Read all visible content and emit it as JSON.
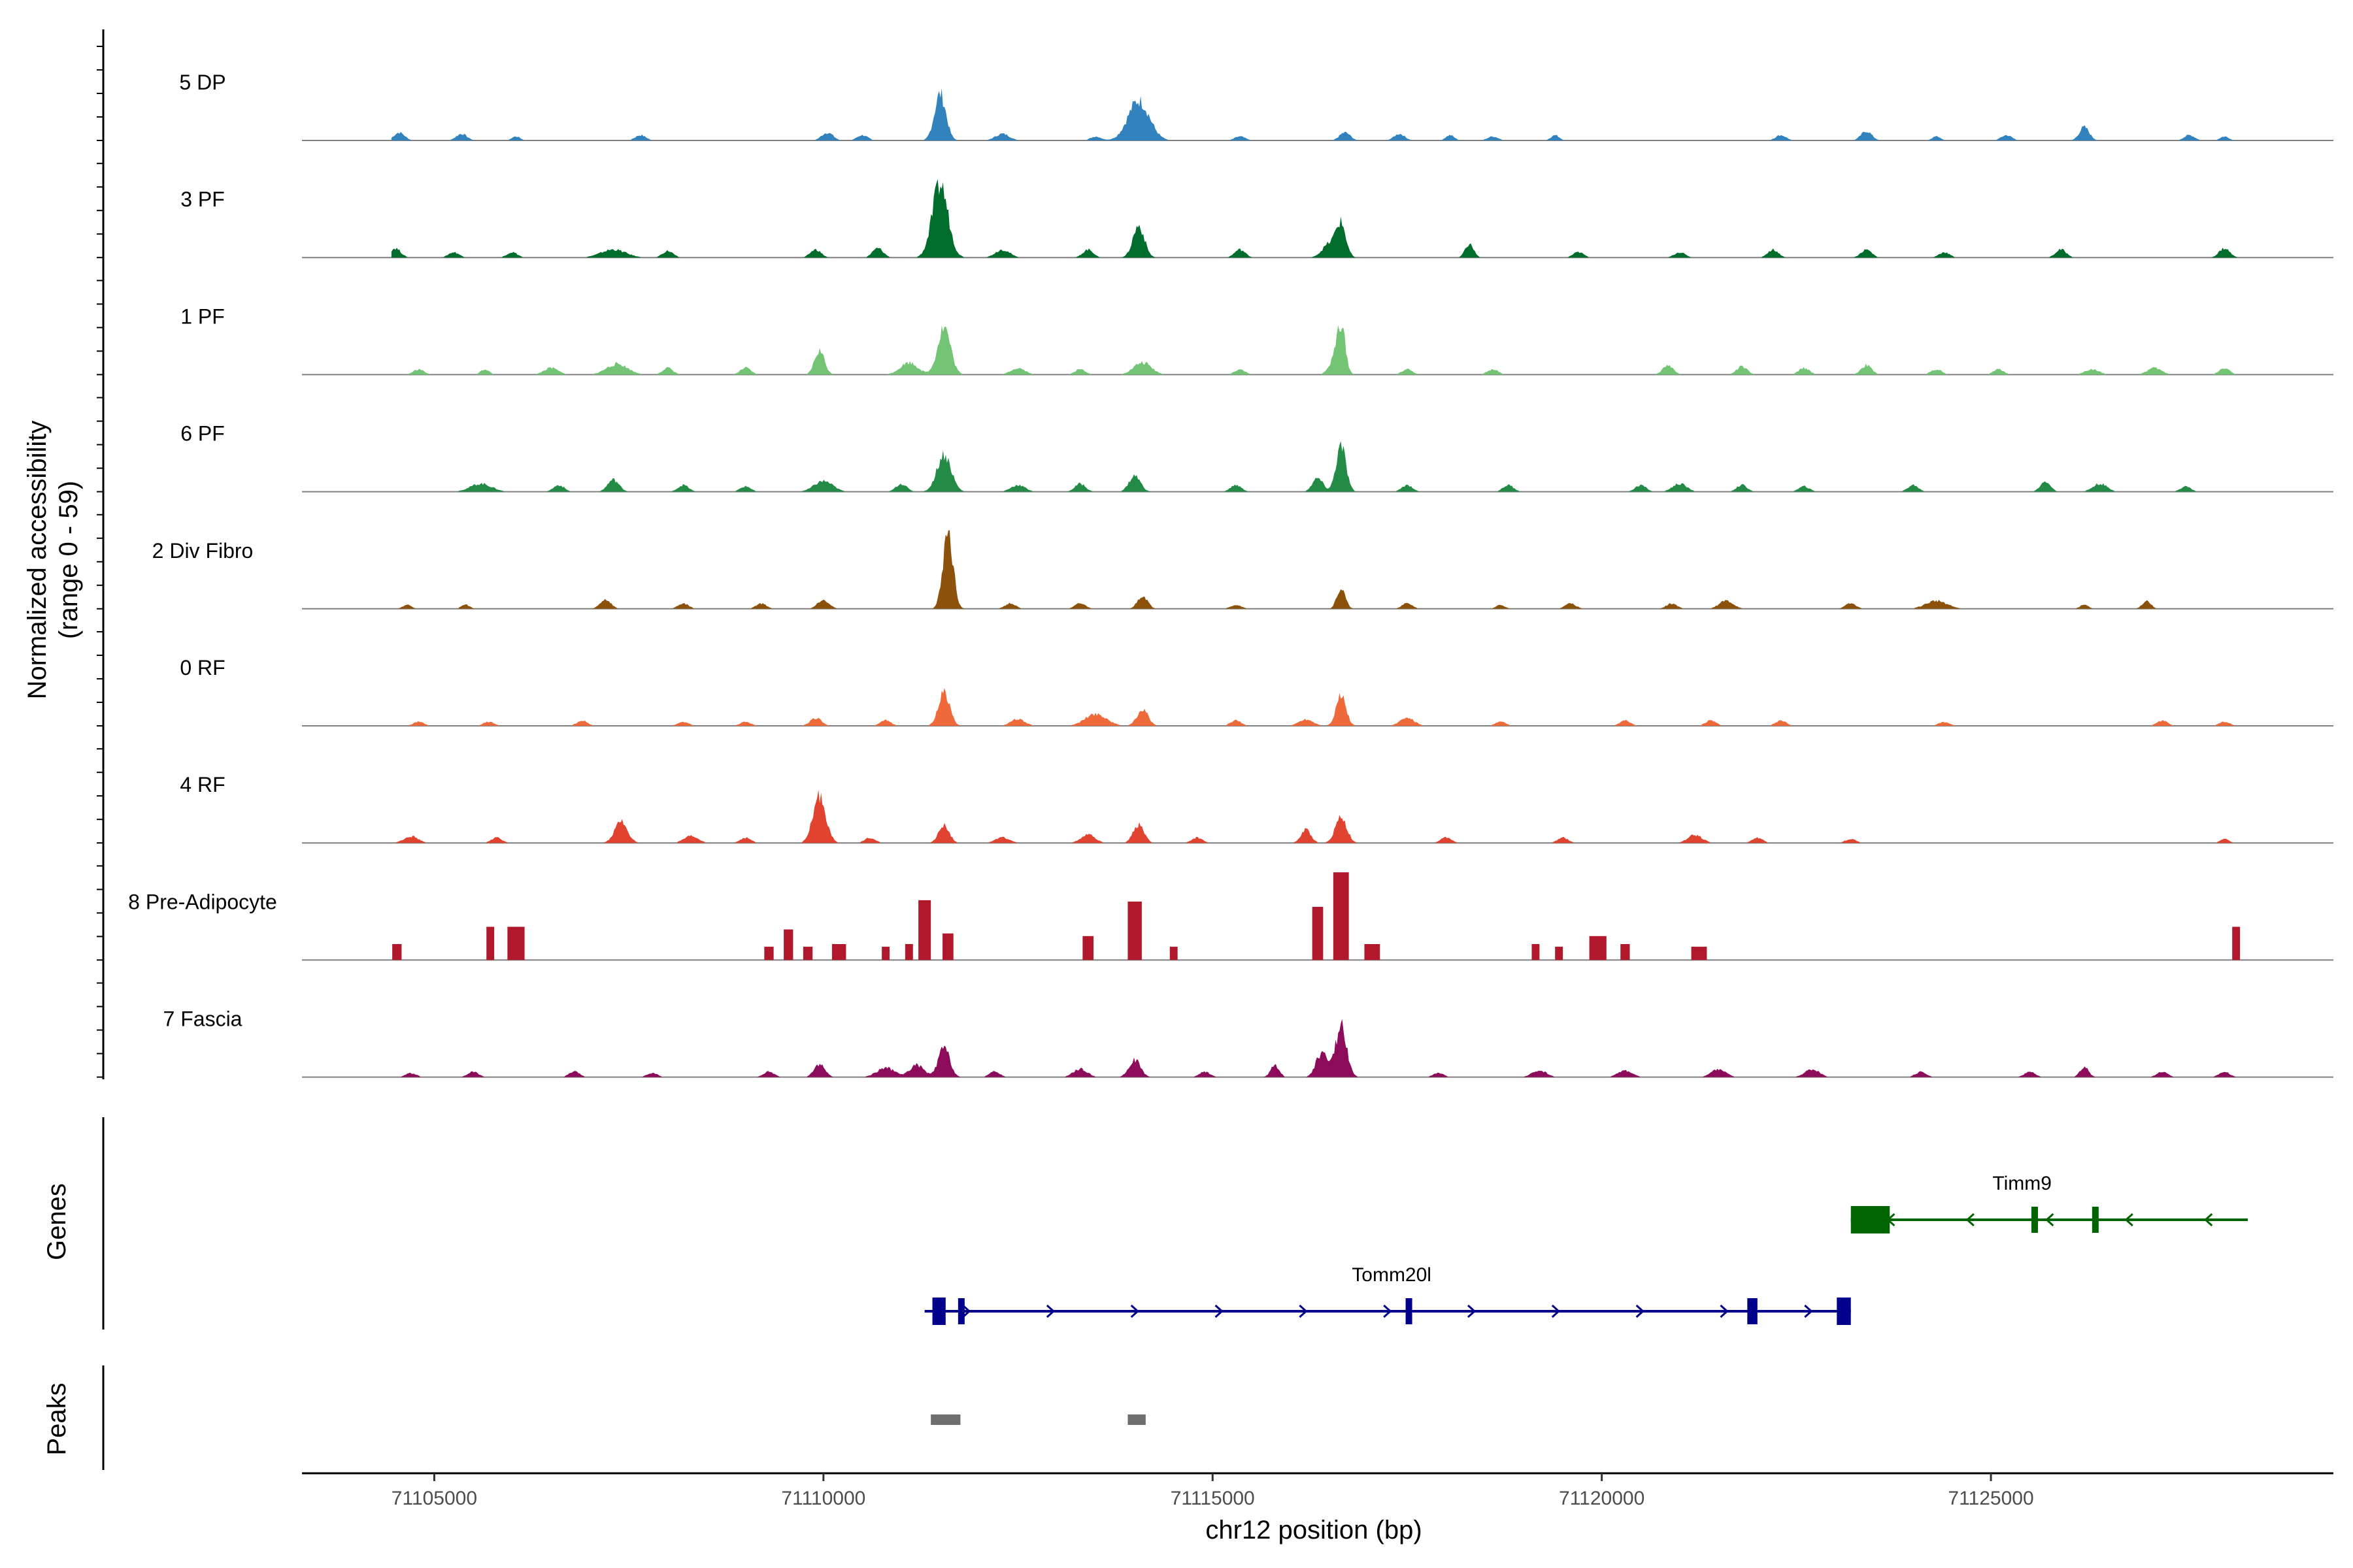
{
  "chart_data": {
    "type": "area",
    "title": "",
    "ylabel_line1": "Normalized accessibility",
    "ylabel_line2": "(range 0 - 59)",
    "yrange": [
      0,
      59
    ],
    "xlabel": "chr12 position (bp)",
    "xlim": [
      71103300,
      71129400
    ],
    "xticks": [
      71105000,
      71110000,
      71115000,
      71120000,
      71125000
    ],
    "xtick_labels": [
      "71105000",
      "71110000",
      "71115000",
      "71120000",
      "71125000"
    ],
    "tracks": [
      {
        "name": "5 DP",
        "color": "#3182bd",
        "style": "smooth",
        "peaks": [
          [
            71104550,
            6,
            150
          ],
          [
            71105350,
            5,
            150
          ],
          [
            71106050,
            3,
            120
          ],
          [
            71107650,
            4,
            150
          ],
          [
            71110050,
            6,
            160
          ],
          [
            71110500,
            4,
            150
          ],
          [
            71111500,
            35,
            160
          ],
          [
            71112300,
            5,
            200
          ],
          [
            71113500,
            3,
            150
          ],
          [
            71114050,
            30,
            300
          ],
          [
            71115350,
            3,
            150
          ],
          [
            71116700,
            6,
            150
          ],
          [
            71117400,
            5,
            150
          ],
          [
            71118050,
            4,
            120
          ],
          [
            71118600,
            3,
            150
          ],
          [
            71119400,
            4,
            120
          ],
          [
            71122300,
            4,
            150
          ],
          [
            71123400,
            7,
            150
          ],
          [
            71124300,
            3,
            120
          ],
          [
            71125200,
            4,
            150
          ],
          [
            71126200,
            10,
            140
          ],
          [
            71127550,
            4,
            150
          ],
          [
            71128000,
            3,
            120
          ]
        ]
      },
      {
        "name": "3 PF",
        "color": "#006d2c",
        "style": "smooth",
        "peaks": [
          [
            71104500,
            7,
            150
          ],
          [
            71105250,
            4,
            150
          ],
          [
            71106000,
            4,
            150
          ],
          [
            71107300,
            6,
            350
          ],
          [
            71108000,
            5,
            150
          ],
          [
            71109900,
            6,
            150
          ],
          [
            71110700,
            7,
            150
          ],
          [
            71111500,
            55,
            220
          ],
          [
            71112300,
            6,
            200
          ],
          [
            71113400,
            6,
            150
          ],
          [
            71114050,
            24,
            160
          ],
          [
            71115350,
            6,
            150
          ],
          [
            71116500,
            10,
            200
          ],
          [
            71116650,
            24,
            140
          ],
          [
            71118300,
            10,
            120
          ],
          [
            71119700,
            4,
            150
          ],
          [
            71121000,
            4,
            150
          ],
          [
            71122200,
            6,
            150
          ],
          [
            71123400,
            6,
            150
          ],
          [
            71124400,
            4,
            150
          ],
          [
            71125900,
            6,
            150
          ],
          [
            71128000,
            7,
            150
          ]
        ]
      },
      {
        "name": "1 PF",
        "color": "#74c476",
        "style": "smooth",
        "peaks": [
          [
            71104800,
            4,
            150
          ],
          [
            71105650,
            4,
            120
          ],
          [
            71106500,
            5,
            200
          ],
          [
            71107350,
            8,
            300
          ],
          [
            71108000,
            5,
            150
          ],
          [
            71109000,
            5,
            150
          ],
          [
            71109950,
            18,
            140
          ],
          [
            71111100,
            9,
            250
          ],
          [
            71111550,
            36,
            180
          ],
          [
            71112500,
            5,
            200
          ],
          [
            71113300,
            4,
            150
          ],
          [
            71114100,
            9,
            250
          ],
          [
            71115350,
            4,
            150
          ],
          [
            71116550,
            8,
            150
          ],
          [
            71116650,
            36,
            120
          ],
          [
            71117500,
            4,
            150
          ],
          [
            71118600,
            4,
            150
          ],
          [
            71120850,
            7,
            150
          ],
          [
            71121800,
            6,
            150
          ],
          [
            71122600,
            5,
            150
          ],
          [
            71123400,
            7,
            150
          ],
          [
            71124300,
            4,
            150
          ],
          [
            71125100,
            4,
            150
          ],
          [
            71126300,
            4,
            200
          ],
          [
            71127100,
            5,
            200
          ],
          [
            71128000,
            5,
            150
          ]
        ]
      },
      {
        "name": "6 PF",
        "color": "#238b45",
        "style": "smooth",
        "peaks": [
          [
            71105600,
            6,
            300
          ],
          [
            71106600,
            5,
            150
          ],
          [
            71107300,
            9,
            160
          ],
          [
            71108200,
            5,
            150
          ],
          [
            71109000,
            4,
            150
          ],
          [
            71110000,
            8,
            260
          ],
          [
            71111000,
            6,
            150
          ],
          [
            71111550,
            28,
            200
          ],
          [
            71112500,
            5,
            200
          ],
          [
            71113300,
            6,
            150
          ],
          [
            71114000,
            12,
            160
          ],
          [
            71115300,
            5,
            150
          ],
          [
            71116350,
            10,
            150
          ],
          [
            71116650,
            34,
            140
          ],
          [
            71117500,
            5,
            150
          ],
          [
            71118800,
            5,
            150
          ],
          [
            71120500,
            5,
            150
          ],
          [
            71121000,
            6,
            200
          ],
          [
            71121800,
            5,
            150
          ],
          [
            71122600,
            4,
            150
          ],
          [
            71124000,
            5,
            150
          ],
          [
            71125700,
            8,
            140
          ],
          [
            71126400,
            6,
            200
          ],
          [
            71127500,
            4,
            150
          ]
        ]
      },
      {
        "name": "2 Div Fibro",
        "color": "#8c510a",
        "style": "smooth",
        "peaks": [
          [
            71104650,
            3,
            120
          ],
          [
            71105400,
            3,
            120
          ],
          [
            71107200,
            7,
            150
          ],
          [
            71108200,
            4,
            150
          ],
          [
            71109200,
            4,
            150
          ],
          [
            71110000,
            7,
            160
          ],
          [
            71111600,
            59,
            140
          ],
          [
            71112400,
            4,
            150
          ],
          [
            71113300,
            4,
            150
          ],
          [
            71114100,
            10,
            140
          ],
          [
            71115300,
            3,
            150
          ],
          [
            71116650,
            15,
            120
          ],
          [
            71117500,
            4,
            150
          ],
          [
            71118700,
            3,
            120
          ],
          [
            71119600,
            4,
            150
          ],
          [
            71120900,
            4,
            150
          ],
          [
            71121600,
            6,
            200
          ],
          [
            71123200,
            4,
            150
          ],
          [
            71124300,
            6,
            300
          ],
          [
            71126200,
            3,
            120
          ],
          [
            71127000,
            6,
            120
          ]
        ]
      },
      {
        "name": "0 RF",
        "color": "#ef6a3a",
        "style": "smooth",
        "peaks": [
          [
            71104800,
            3,
            150
          ],
          [
            71105700,
            3,
            150
          ],
          [
            71106900,
            4,
            150
          ],
          [
            71108200,
            3,
            150
          ],
          [
            71109000,
            3,
            150
          ],
          [
            71109900,
            6,
            160
          ],
          [
            71110800,
            4,
            150
          ],
          [
            71111550,
            25,
            160
          ],
          [
            71112500,
            5,
            200
          ],
          [
            71113500,
            9,
            300
          ],
          [
            71114100,
            12,
            160
          ],
          [
            71115300,
            4,
            150
          ],
          [
            71116200,
            5,
            200
          ],
          [
            71116650,
            23,
            140
          ],
          [
            71117500,
            6,
            200
          ],
          [
            71118700,
            3,
            150
          ],
          [
            71120300,
            4,
            150
          ],
          [
            71121400,
            4,
            150
          ],
          [
            71122300,
            4,
            150
          ],
          [
            71124400,
            3,
            150
          ],
          [
            71127200,
            4,
            150
          ],
          [
            71128000,
            3,
            150
          ]
        ]
      },
      {
        "name": "4 RF",
        "color": "#e0432f",
        "style": "smooth",
        "peaks": [
          [
            71104700,
            5,
            200
          ],
          [
            71105800,
            4,
            150
          ],
          [
            71107400,
            16,
            180
          ],
          [
            71108300,
            5,
            200
          ],
          [
            71109000,
            4,
            150
          ],
          [
            71109950,
            35,
            180
          ],
          [
            71110600,
            4,
            150
          ],
          [
            71111550,
            13,
            150
          ],
          [
            71112300,
            4,
            200
          ],
          [
            71113400,
            6,
            200
          ],
          [
            71114050,
            14,
            150
          ],
          [
            71114800,
            4,
            150
          ],
          [
            71116200,
            10,
            140
          ],
          [
            71116650,
            20,
            160
          ],
          [
            71118000,
            4,
            150
          ],
          [
            71119500,
            4,
            150
          ],
          [
            71121200,
            6,
            200
          ],
          [
            71122000,
            4,
            150
          ],
          [
            71123200,
            3,
            150
          ],
          [
            71128000,
            3,
            120
          ]
        ]
      },
      {
        "name": "8 Pre-Adipocyte",
        "color": "#b2182b",
        "style": "blocky",
        "peaks": [
          [
            71104520,
            12,
            120
          ],
          [
            71105720,
            25,
            100
          ],
          [
            71106050,
            25,
            220
          ],
          [
            71109300,
            10,
            120
          ],
          [
            71109550,
            23,
            120
          ],
          [
            71109800,
            10,
            120
          ],
          [
            71110200,
            12,
            180
          ],
          [
            71110800,
            10,
            100
          ],
          [
            71111100,
            12,
            100
          ],
          [
            71111300,
            45,
            160
          ],
          [
            71111600,
            20,
            140
          ],
          [
            71113400,
            18,
            140
          ],
          [
            71114000,
            44,
            180
          ],
          [
            71114500,
            10,
            100
          ],
          [
            71116350,
            40,
            140
          ],
          [
            71116650,
            66,
            200
          ],
          [
            71117050,
            12,
            200
          ],
          [
            71119150,
            12,
            100
          ],
          [
            71119450,
            10,
            100
          ],
          [
            71119950,
            18,
            220
          ],
          [
            71120300,
            12,
            120
          ],
          [
            71121250,
            10,
            200
          ],
          [
            71128150,
            25,
            100
          ]
        ]
      },
      {
        "name": "7 Fascia",
        "color": "#8c0b5a",
        "style": "smooth",
        "peaks": [
          [
            71104700,
            3,
            150
          ],
          [
            71105500,
            4,
            150
          ],
          [
            71106800,
            4,
            150
          ],
          [
            71107800,
            3,
            150
          ],
          [
            71109300,
            4,
            150
          ],
          [
            71109950,
            10,
            150
          ],
          [
            71110800,
            7,
            250
          ],
          [
            71111200,
            9,
            200
          ],
          [
            71111550,
            22,
            160
          ],
          [
            71112200,
            4,
            150
          ],
          [
            71113300,
            6,
            200
          ],
          [
            71114000,
            13,
            160
          ],
          [
            71114900,
            4,
            150
          ],
          [
            71115800,
            9,
            120
          ],
          [
            71116400,
            18,
            160
          ],
          [
            71116650,
            38,
            160
          ],
          [
            71117900,
            3,
            150
          ],
          [
            71119200,
            5,
            200
          ],
          [
            71120300,
            5,
            200
          ],
          [
            71121500,
            6,
            200
          ],
          [
            71122700,
            6,
            200
          ],
          [
            71124100,
            4,
            150
          ],
          [
            71125500,
            4,
            150
          ],
          [
            71126200,
            8,
            120
          ],
          [
            71127200,
            4,
            150
          ],
          [
            71128000,
            4,
            150
          ]
        ]
      }
    ],
    "genes_label": "Genes",
    "genes": [
      {
        "name": "Timm9",
        "strand": "-",
        "color": "#006400",
        "row": 1,
        "start": 71123200,
        "end": 71128300,
        "label_pos": 71125400,
        "exons": [
          [
            71123200,
            71123700,
            "utr"
          ],
          [
            71125520,
            71125600,
            "cds"
          ],
          [
            71126300,
            71126380,
            "cds"
          ]
        ]
      },
      {
        "name": "Tomm20l",
        "strand": "+",
        "color": "#00008b",
        "row": 2,
        "start": 71111300,
        "end": 71123200,
        "label_pos": 71117300,
        "exons": [
          [
            71111400,
            71111570,
            "utr"
          ],
          [
            71111730,
            71111790,
            "cds"
          ],
          [
            71117480,
            71117560,
            "cds"
          ],
          [
            71121870,
            71122000,
            "cds"
          ],
          [
            71123020,
            71123200,
            "utr"
          ]
        ]
      }
    ],
    "peaks_label": "Peaks",
    "peak_regions": [
      [
        71111380,
        71111760
      ],
      [
        71113910,
        71114140
      ]
    ],
    "peak_color": "#6e6e6e"
  }
}
